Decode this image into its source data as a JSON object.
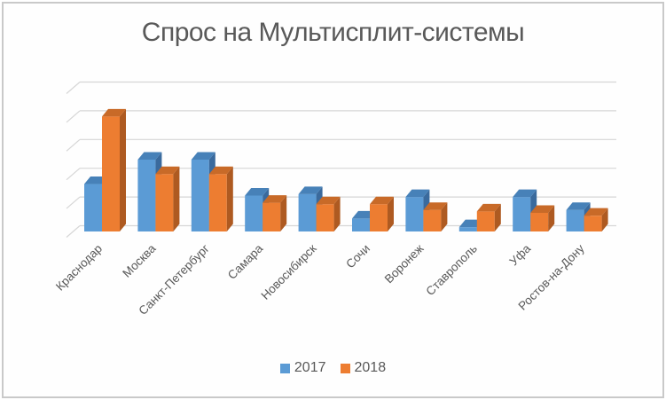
{
  "window": {
    "border_color": "#C9C9C9",
    "background": "#FEFEFE"
  },
  "chart_data": {
    "type": "bar",
    "variant": "3d-clustered-column",
    "title": "Спрос на Мультисплит-системы",
    "title_color": "#595959",
    "categories": [
      "Краснодар",
      "Москва",
      "Санкт-Петербург",
      "Самара",
      "Новосибирск",
      "Сочи",
      "Воронеж",
      "Ставрополь",
      "Уфа",
      "Ростов-на-Дону"
    ],
    "series": [
      {
        "name": "2017",
        "color": "#5B9BD5",
        "color_side": "#3A6A9D",
        "color_top": "#4781B8",
        "values": [
          33,
          50,
          50,
          25,
          26,
          9,
          24,
          3,
          24,
          15
        ]
      },
      {
        "name": "2018",
        "color": "#ED7D31",
        "color_side": "#AE5A21",
        "color_top": "#C86A28",
        "values": [
          80,
          40,
          40,
          20,
          19,
          19,
          15,
          14,
          13,
          11
        ]
      }
    ],
    "xlabel": "",
    "ylabel": "",
    "ylim": [
      0,
      100
    ],
    "gridline_step": 20,
    "y_axis_labels_visible": false,
    "grid": true,
    "gridline_color": "#D6D6D6",
    "text_color": "#595959",
    "legend_position": "bottom"
  }
}
